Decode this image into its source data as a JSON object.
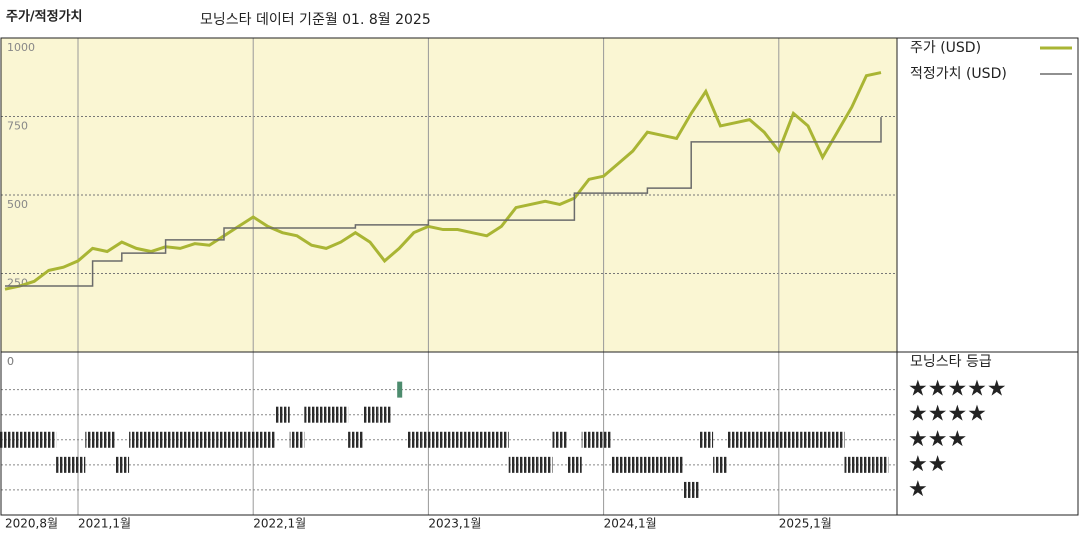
{
  "chart_data": [
    {
      "type": "line",
      "title": "주가/적정가치",
      "subtitle": "모닝스타 데이터 기준월 01. 8월 2025",
      "x": [
        "2020-08",
        "2020-09",
        "2020-10",
        "2020-11",
        "2020-12",
        "2021-01",
        "2021-02",
        "2021-03",
        "2021-04",
        "2021-05",
        "2021-06",
        "2021-07",
        "2021-08",
        "2021-09",
        "2021-10",
        "2021-11",
        "2021-12",
        "2022-01",
        "2022-02",
        "2022-03",
        "2022-04",
        "2022-05",
        "2022-06",
        "2022-07",
        "2022-08",
        "2022-09",
        "2022-10",
        "2022-11",
        "2022-12",
        "2023-01",
        "2023-02",
        "2023-03",
        "2023-04",
        "2023-05",
        "2023-06",
        "2023-07",
        "2023-08",
        "2023-09",
        "2023-10",
        "2023-11",
        "2023-12",
        "2024-01",
        "2024-02",
        "2024-03",
        "2024-04",
        "2024-05",
        "2024-06",
        "2024-07",
        "2024-08",
        "2024-09",
        "2024-10",
        "2024-11",
        "2024-12",
        "2025-01",
        "2025-02",
        "2025-03",
        "2025-04",
        "2025-05",
        "2025-06",
        "2025-07",
        "2025-08"
      ],
      "series": [
        {
          "name": "주가 (USD)",
          "color": "#a9b534",
          "shape": "linear",
          "values": [
            200,
            210,
            225,
            260,
            270,
            290,
            330,
            320,
            350,
            330,
            320,
            335,
            330,
            345,
            340,
            370,
            400,
            430,
            400,
            380,
            370,
            340,
            330,
            350,
            380,
            350,
            290,
            330,
            380,
            400,
            390,
            390,
            380,
            370,
            400,
            460,
            470,
            480,
            470,
            490,
            550,
            560,
            600,
            640,
            700,
            690,
            680,
            760,
            830,
            720,
            730,
            740,
            700,
            640,
            760,
            720,
            620,
            700,
            780,
            880,
            890
          ]
        },
        {
          "name": "적정가치 (USD)",
          "color": "#6b6b6b",
          "shape": "step",
          "values": [
            210,
            210,
            210,
            210,
            210,
            210,
            290,
            290,
            315,
            315,
            315,
            357,
            357,
            357,
            357,
            395,
            395,
            395,
            395,
            395,
            395,
            395,
            395,
            395,
            405,
            405,
            405,
            405,
            405,
            420,
            420,
            420,
            420,
            420,
            420,
            420,
            420,
            420,
            420,
            506,
            506,
            506,
            506,
            506,
            522,
            522,
            522,
            669,
            669,
            669,
            669,
            669,
            669,
            669,
            669,
            669,
            669,
            669,
            669,
            669,
            748
          ]
        }
      ],
      "ylim": [
        0,
        1000
      ],
      "yticks": [
        0,
        250,
        500,
        750,
        1000
      ],
      "xticks": [
        {
          "value": "2020-08",
          "label": "2020,8월"
        },
        {
          "value": "2021-01",
          "label": "2021,1월"
        },
        {
          "value": "2022-01",
          "label": "2022,1월"
        },
        {
          "value": "2023-01",
          "label": "2023,1월"
        },
        {
          "value": "2024-01",
          "label": "2024,1월"
        },
        {
          "value": "2025-01",
          "label": "2025,1월"
        }
      ],
      "background": "#faf6d3",
      "grid": true
    },
    {
      "type": "rating",
      "title": "모닝스타 등급",
      "values": [
        3,
        3,
        3,
        3,
        2,
        2,
        3,
        3,
        2,
        3,
        3,
        3,
        3,
        3,
        3,
        3,
        3,
        3,
        3,
        4,
        3,
        4,
        4,
        4,
        3,
        4,
        4,
        5,
        3,
        3,
        3,
        3,
        3,
        3,
        3,
        2,
        2,
        2,
        3,
        2,
        3,
        3,
        2,
        2,
        2,
        2,
        2,
        1,
        3,
        2,
        3,
        3,
        3,
        3,
        3,
        3,
        3,
        3,
        2,
        2,
        2
      ],
      "ylim": [
        0,
        6.5
      ],
      "yticks": [
        {
          "value": 5,
          "label": "★★★★★"
        },
        {
          "value": 4,
          "label": "★★★★"
        },
        {
          "value": 3,
          "label": "★★★"
        },
        {
          "value": 2,
          "label": "★★"
        },
        {
          "value": 1,
          "label": "★"
        }
      ],
      "colors": [
        "#2b2b2b",
        "#2b2b2b",
        "#2b2b2b",
        "#2b2b2b",
        "#4d8c6e"
      ]
    }
  ]
}
